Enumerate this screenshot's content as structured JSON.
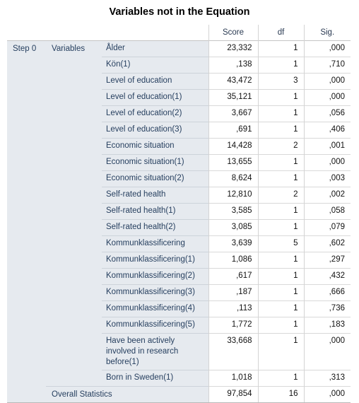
{
  "table": {
    "title": "Variables not in the Equation",
    "columns": [
      "Score",
      "df",
      "Sig."
    ],
    "step_label": "Step 0",
    "group_label": "Variables",
    "rows": [
      {
        "label": "Ålder",
        "score": "23,332",
        "df": "1",
        "sig": ",000"
      },
      {
        "label": "Kön(1)",
        "score": ",138",
        "df": "1",
        "sig": ",710"
      },
      {
        "label": "Level of education",
        "score": "43,472",
        "df": "3",
        "sig": ",000"
      },
      {
        "label": "Level of education(1)",
        "score": "35,121",
        "df": "1",
        "sig": ",000"
      },
      {
        "label": "Level of education(2)",
        "score": "3,667",
        "df": "1",
        "sig": ",056"
      },
      {
        "label": "Level of education(3)",
        "score": ",691",
        "df": "1",
        "sig": ",406"
      },
      {
        "label": "Economic situation",
        "score": "14,428",
        "df": "2",
        "sig": ",001"
      },
      {
        "label": "Economic situation(1)",
        "score": "13,655",
        "df": "1",
        "sig": ",000"
      },
      {
        "label": "Economic situation(2)",
        "score": "8,624",
        "df": "1",
        "sig": ",003"
      },
      {
        "label": "Self-rated health",
        "score": "12,810",
        "df": "2",
        "sig": ",002"
      },
      {
        "label": "Self-rated health(1)",
        "score": "3,585",
        "df": "1",
        "sig": ",058"
      },
      {
        "label": "Self-rated health(2)",
        "score": "3,085",
        "df": "1",
        "sig": ",079"
      },
      {
        "label": "Kommunklassificering",
        "score": "3,639",
        "df": "5",
        "sig": ",602"
      },
      {
        "label": "Kommunklassificering(1)",
        "score": "1,086",
        "df": "1",
        "sig": ",297"
      },
      {
        "label": "Kommunklassificering(2)",
        "score": ",617",
        "df": "1",
        "sig": ",432"
      },
      {
        "label": "Kommunklassificering(3)",
        "score": ",187",
        "df": "1",
        "sig": ",666"
      },
      {
        "label": "Kommunklassificering(4)",
        "score": ",113",
        "df": "1",
        "sig": ",736"
      },
      {
        "label": "Kommunklassificering(5)",
        "score": "1,772",
        "df": "1",
        "sig": ",183"
      },
      {
        "label": "Have been actively involved in research before(1)",
        "score": "33,668",
        "df": "1",
        "sig": ",000"
      },
      {
        "label": "Born in Sweden(1)",
        "score": "1,018",
        "df": "1",
        "sig": ",313"
      }
    ],
    "overall": {
      "label": "Overall Statistics",
      "score": "97,854",
      "df": "16",
      "sig": ",000"
    }
  }
}
